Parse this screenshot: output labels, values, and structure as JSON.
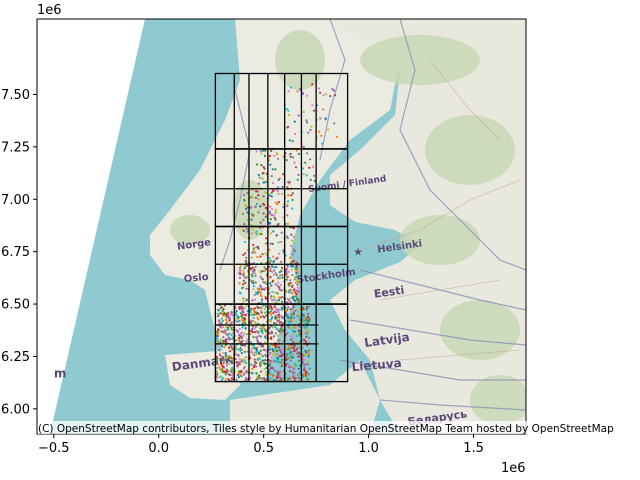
{
  "chart_data": {
    "type": "scatter",
    "title": "",
    "xlabel": "",
    "ylabel": "",
    "x_ticks": [
      -0.5,
      0.0,
      0.5,
      1.0,
      1.5
    ],
    "x_tick_labels": [
      "−0.5",
      "0.0",
      "0.5",
      "1.0",
      "1.5"
    ],
    "y_ticks": [
      6.0,
      6.25,
      6.5,
      6.75,
      7.0,
      7.25,
      7.5
    ],
    "y_tick_labels": [
      "6.00",
      "6.25",
      "6.50",
      "6.75",
      "7.00",
      "7.25",
      "7.50"
    ],
    "x_offset_label": "1e6",
    "y_offset_label": "1e6",
    "xlim": [
      -0.58,
      1.75
    ],
    "ylim": [
      5.88,
      7.86
    ],
    "grid": false,
    "basemap": {
      "attribution": "(C) OpenStreetMap contributors, Tiles style by Humanitarian OpenStreetMap Team hosted by OpenStreetMap",
      "place_labels": [
        {
          "text": "Suomi / Finland",
          "x": 0.9,
          "y": 7.06,
          "size": 9,
          "rot": -8
        },
        {
          "text": "Norge",
          "x": 0.17,
          "y": 6.77,
          "size": 10,
          "rot": -8
        },
        {
          "text": "Helsinki",
          "x": 1.15,
          "y": 6.76,
          "size": 10,
          "rot": -8
        },
        {
          "text": "Oslo",
          "x": 0.18,
          "y": 6.61,
          "size": 10,
          "rot": -5
        },
        {
          "text": "Stockholm",
          "x": 0.8,
          "y": 6.62,
          "size": 10,
          "rot": -8
        },
        {
          "text": "Eesti",
          "x": 1.1,
          "y": 6.54,
          "size": 11,
          "rot": -8
        },
        {
          "text": "Latvija",
          "x": 1.09,
          "y": 6.31,
          "size": 12,
          "rot": -8
        },
        {
          "text": "Danmark",
          "x": 0.21,
          "y": 6.2,
          "size": 12,
          "rot": -8
        },
        {
          "text": "Lietuva",
          "x": 1.04,
          "y": 6.19,
          "size": 12,
          "rot": -5
        },
        {
          "text": "Беларусь",
          "x": 1.33,
          "y": 5.94,
          "size": 11,
          "rot": -8
        },
        {
          "text": "m",
          "x": -0.47,
          "y": 6.15,
          "size": 12,
          "rot": 0
        }
      ]
    },
    "grid_cells": [
      [
        0.27,
        7.24,
        0.9,
        7.6
      ],
      [
        0.27,
        6.87,
        0.9,
        7.24
      ],
      [
        0.27,
        6.5,
        0.9,
        6.87
      ],
      [
        0.27,
        6.13,
        0.9,
        6.5
      ]
    ],
    "cell_lines_x": [
      0.36,
      0.43,
      0.52,
      0.6,
      0.68,
      0.75
    ],
    "cell_lines_y": [
      7.24,
      7.05,
      6.87,
      6.69,
      6.5,
      6.4,
      6.31
    ],
    "series_palette": [
      "#1f77b4",
      "#ff7f0e",
      "#2ca02c",
      "#d62728",
      "#9467bd",
      "#8c564b",
      "#e377c2",
      "#7f7f7f",
      "#bcbd22",
      "#17becf"
    ],
    "point_clusters": [
      {
        "x": [
          0.27,
          0.72
        ],
        "y": [
          6.13,
          6.5
        ],
        "n": 1100
      },
      {
        "x": [
          0.38,
          0.67
        ],
        "y": [
          6.5,
          6.7
        ],
        "n": 260
      },
      {
        "x": [
          0.4,
          0.65
        ],
        "y": [
          6.7,
          7.05
        ],
        "n": 180
      },
      {
        "x": [
          0.45,
          0.75
        ],
        "y": [
          7.05,
          7.24
        ],
        "n": 70
      },
      {
        "x": [
          0.6,
          0.85
        ],
        "y": [
          7.24,
          7.55
        ],
        "n": 55
      }
    ]
  }
}
